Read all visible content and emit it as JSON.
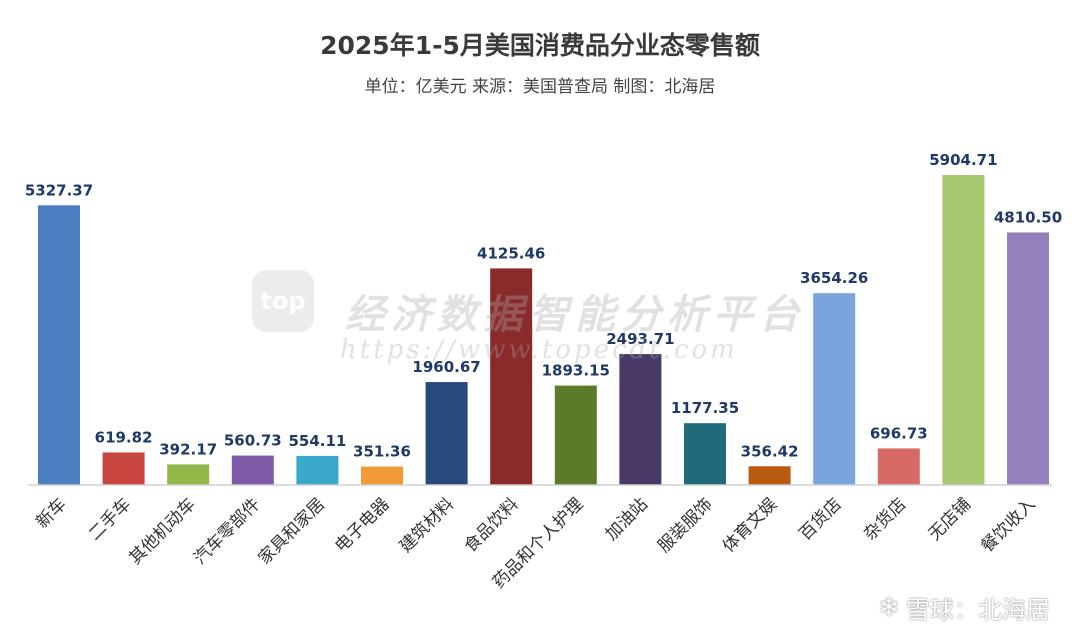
{
  "chart_data": {
    "type": "bar",
    "title": "2025年1-5月美国消费品分业态零售额",
    "subtitle": "单位：亿美元 来源：美国普查局 制图：北海居",
    "categories": [
      "新车",
      "二手车",
      "其他机动车",
      "汽车零部件",
      "家具和家居",
      "电子电器",
      "建筑材料",
      "食品饮料",
      "药品和个人护理",
      "加油站",
      "服装服饰",
      "体育文娱",
      "百货店",
      "杂货店",
      "无店铺",
      "餐饮收入"
    ],
    "values": [
      5327.37,
      619.82,
      392.17,
      560.73,
      554.11,
      351.36,
      1960.67,
      4125.46,
      1893.15,
      2493.71,
      1177.35,
      356.42,
      3654.26,
      696.73,
      5904.71,
      4810.5
    ],
    "value_labels": [
      "5327.37",
      "619.82",
      "392.17",
      "560.73",
      "554.11",
      "351.36",
      "1960.67",
      "4125.46",
      "1893.15",
      "2493.71",
      "1177.35",
      "356.42",
      "3654.26",
      "696.73",
      "5904.71",
      "4810.50"
    ],
    "colors": [
      "#4a7fc1",
      "#c8453f",
      "#93b84a",
      "#7f5aa8",
      "#3aa9c9",
      "#f29a3a",
      "#284a7a",
      "#8a2a2a",
      "#5b7a2a",
      "#4a3a68",
      "#206a7c",
      "#b85a10",
      "#7aa4dc",
      "#d86a66",
      "#a6c870",
      "#9480bc"
    ],
    "ylim": [
      0,
      6000
    ],
    "grid": false,
    "legend": "none"
  },
  "watermark": {
    "logo_text": "top",
    "text": "经济数据智能分析平台",
    "url": "https://www.topecdt.com"
  },
  "footer": {
    "brand_icon": "snowball-icon",
    "text": "雪球：北海居"
  }
}
